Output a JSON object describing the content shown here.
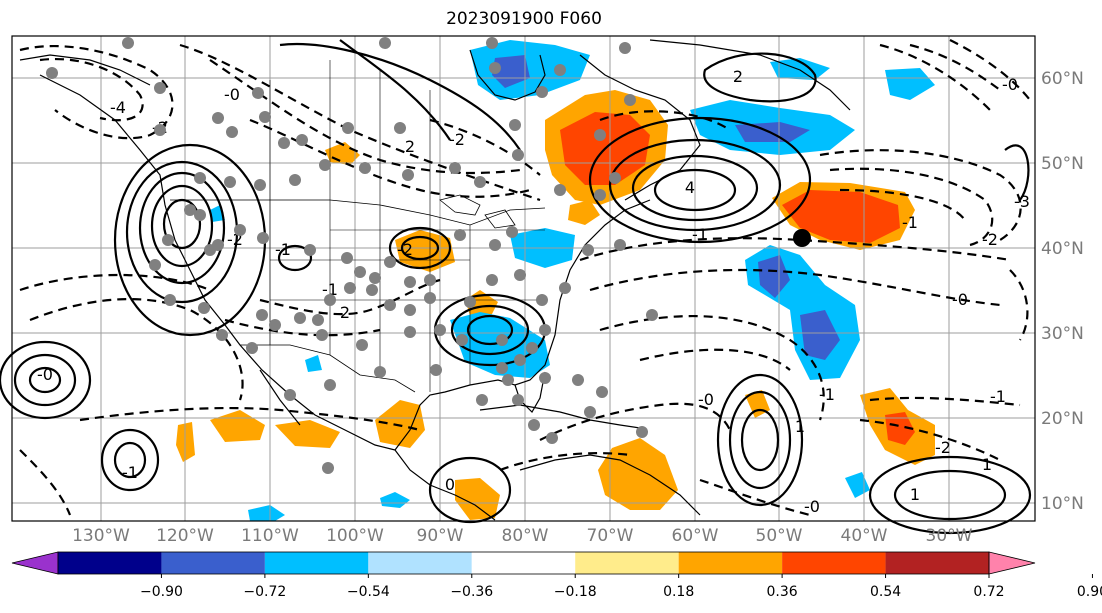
{
  "title": "2023091900 F060",
  "map": {
    "lon_labels": [
      "130°W",
      "120°W",
      "110°W",
      "100°W",
      "90°W",
      "80°W",
      "70°W",
      "60°W",
      "50°W",
      "40°W",
      "30°W"
    ],
    "lat_labels": [
      "60°N",
      "50°N",
      "40°N",
      "30°N",
      "20°N",
      "10°N"
    ],
    "contour_labels": [
      "-4",
      "-2",
      "2",
      "-2",
      "2",
      "4",
      "-2",
      "-1",
      "-1",
      "2",
      "-2",
      "-1",
      "-0",
      "-1",
      "-3",
      "-2",
      "-2",
      "-1",
      "-0",
      "0",
      "-0",
      "1",
      "-1",
      "1",
      "-0",
      "-0",
      "-0",
      "1",
      "-1"
    ],
    "contour_color": "#000000",
    "station_marker_color": "#808080",
    "highlight_marker_color": "#000000"
  },
  "colorbar": {
    "ticks": [
      "−0.90",
      "−0.72",
      "−0.54",
      "−0.36",
      "−0.18",
      "0.18",
      "0.36",
      "0.54",
      "0.72",
      "0.90"
    ],
    "colors": [
      "#9a32cd",
      "#00008b",
      "#3a5fcd",
      "#00bfff",
      "#b0e2ff",
      "#ffffff",
      "#ffec8b",
      "#ffa500",
      "#ff4500",
      "#b22222",
      "#ff82ab"
    ]
  }
}
